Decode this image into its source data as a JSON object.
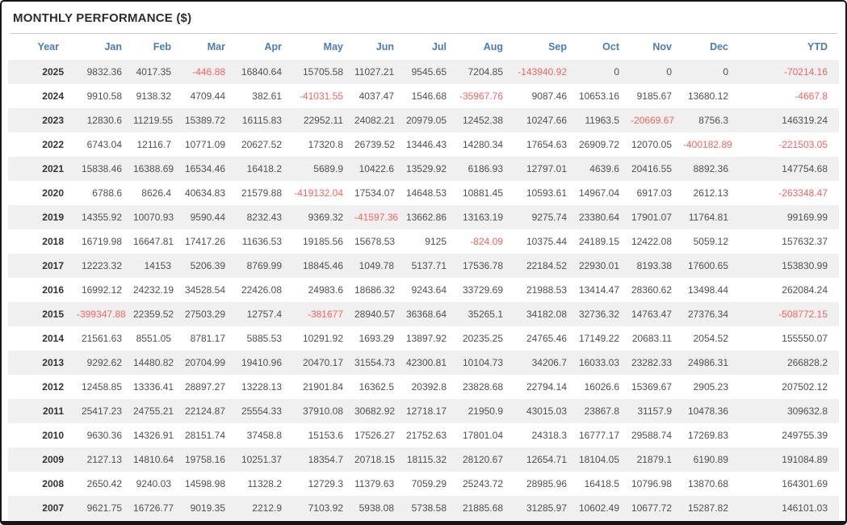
{
  "title": "MONTHLY PERFORMANCE ($)",
  "colors": {
    "header_text": "#4a7bb7",
    "positive_text": "#4f4f4f",
    "negative_text": "#fa625c",
    "year_text": "#333333",
    "stripe": "#f0f0f0",
    "border": "#161616",
    "divider": "#cccccc"
  },
  "table": {
    "columns": [
      "Year",
      "Jan",
      "Feb",
      "Mar",
      "Apr",
      "May",
      "Jun",
      "Jul",
      "Aug",
      "Sep",
      "Oct",
      "Nov",
      "Dec",
      "YTD"
    ],
    "rows": [
      {
        "year": "2025",
        "values": [
          "9832.36",
          "4017.35",
          "-446.88",
          "16840.64",
          "15705.58",
          "11027.21",
          "9545.65",
          "7204.85",
          "-143940.92",
          "0",
          "0",
          "0",
          "-70214.16"
        ]
      },
      {
        "year": "2024",
        "values": [
          "9910.58",
          "9138.32",
          "4709.44",
          "382.61",
          "-41031.55",
          "4037.47",
          "1546.68",
          "-35967.76",
          "9087.46",
          "10653.16",
          "9185.67",
          "13680.12",
          "-4667.8"
        ]
      },
      {
        "year": "2023",
        "values": [
          "12830.6",
          "11219.55",
          "15389.72",
          "16115.83",
          "22952.11",
          "24082.21",
          "20979.05",
          "12452.38",
          "10247.66",
          "11963.5",
          "-20669.67",
          "8756.3",
          "146319.24"
        ]
      },
      {
        "year": "2022",
        "values": [
          "6743.04",
          "12116.7",
          "10771.09",
          "20627.52",
          "17320.8",
          "26739.52",
          "13446.43",
          "14280.34",
          "17654.63",
          "26909.72",
          "12070.05",
          "-400182.89",
          "-221503.05"
        ]
      },
      {
        "year": "2021",
        "values": [
          "15838.46",
          "16388.69",
          "16534.46",
          "16418.2",
          "5689.9",
          "10422.6",
          "13529.92",
          "6186.93",
          "12797.01",
          "4639.6",
          "20416.55",
          "8892.36",
          "147754.68"
        ]
      },
      {
        "year": "2020",
        "values": [
          "6788.6",
          "8626.4",
          "40634.83",
          "21579.88",
          "-419132.04",
          "17534.07",
          "14648.53",
          "10881.45",
          "10593.61",
          "14967.04",
          "6917.03",
          "2612.13",
          "-263348.47"
        ]
      },
      {
        "year": "2019",
        "values": [
          "14355.92",
          "10070.93",
          "9590.44",
          "8232.43",
          "9369.32",
          "-41597.36",
          "13662.86",
          "13163.19",
          "9275.74",
          "23380.64",
          "17901.07",
          "11764.81",
          "99169.99"
        ]
      },
      {
        "year": "2018",
        "values": [
          "16719.98",
          "16647.81",
          "17417.26",
          "11636.53",
          "19185.56",
          "15678.53",
          "9125",
          "-824.09",
          "10375.44",
          "24189.15",
          "12422.08",
          "5059.12",
          "157632.37"
        ]
      },
      {
        "year": "2017",
        "values": [
          "12223.32",
          "14153",
          "5206.39",
          "8769.99",
          "18845.46",
          "1049.78",
          "5137.71",
          "17536.78",
          "22184.52",
          "22930.01",
          "8193.38",
          "17600.65",
          "153830.99"
        ]
      },
      {
        "year": "2016",
        "values": [
          "16992.12",
          "24232.19",
          "34528.54",
          "22426.08",
          "24983.6",
          "18686.32",
          "9243.64",
          "33729.69",
          "21988.53",
          "13414.47",
          "28360.62",
          "13498.44",
          "262084.24"
        ]
      },
      {
        "year": "2015",
        "values": [
          "-399347.88",
          "22359.52",
          "27503.29",
          "12757.4",
          "-381677",
          "28940.57",
          "36368.64",
          "35265.1",
          "34182.08",
          "32736.32",
          "14763.47",
          "27376.34",
          "-508772.15"
        ]
      },
      {
        "year": "2014",
        "values": [
          "21561.63",
          "8551.05",
          "8781.17",
          "5885.53",
          "10291.92",
          "1693.29",
          "13897.92",
          "20235.25",
          "24765.46",
          "17149.22",
          "20683.11",
          "2054.52",
          "155550.07"
        ]
      },
      {
        "year": "2013",
        "values": [
          "9292.62",
          "14480.82",
          "20704.99",
          "19410.96",
          "20470.17",
          "31554.73",
          "42300.81",
          "10104.73",
          "34206.7",
          "16033.03",
          "23282.33",
          "24986.31",
          "266828.2"
        ]
      },
      {
        "year": "2012",
        "values": [
          "12458.85",
          "13336.41",
          "28897.27",
          "13228.13",
          "21901.84",
          "16362.5",
          "20392.8",
          "23828.68",
          "22794.14",
          "16026.6",
          "15369.67",
          "2905.23",
          "207502.12"
        ]
      },
      {
        "year": "2011",
        "values": [
          "25417.23",
          "24755.21",
          "22124.87",
          "25554.33",
          "37910.08",
          "30682.92",
          "12718.17",
          "21950.9",
          "43015.03",
          "23867.8",
          "31157.9",
          "10478.36",
          "309632.8"
        ]
      },
      {
        "year": "2010",
        "values": [
          "9630.36",
          "14326.91",
          "28151.74",
          "37458.8",
          "15153.6",
          "17526.27",
          "21752.63",
          "17801.04",
          "24318.3",
          "16777.17",
          "29588.74",
          "17269.83",
          "249755.39"
        ]
      },
      {
        "year": "2009",
        "values": [
          "2127.13",
          "14810.64",
          "19758.16",
          "10251.37",
          "18354.7",
          "20718.15",
          "18115.32",
          "28120.67",
          "12654.71",
          "18104.05",
          "21879.1",
          "6190.89",
          "191084.89"
        ]
      },
      {
        "year": "2008",
        "values": [
          "2650.42",
          "9240.03",
          "14598.98",
          "11328.2",
          "12729.3",
          "11379.63",
          "7059.29",
          "25243.72",
          "28985.96",
          "16418.5",
          "10796.98",
          "13870.68",
          "164301.69"
        ]
      },
      {
        "year": "2007",
        "values": [
          "9621.75",
          "16726.77",
          "9019.35",
          "2212.9",
          "7103.92",
          "5938.08",
          "5738.58",
          "21885.68",
          "31285.97",
          "10602.49",
          "10677.72",
          "15287.82",
          "146101.03"
        ]
      }
    ]
  }
}
